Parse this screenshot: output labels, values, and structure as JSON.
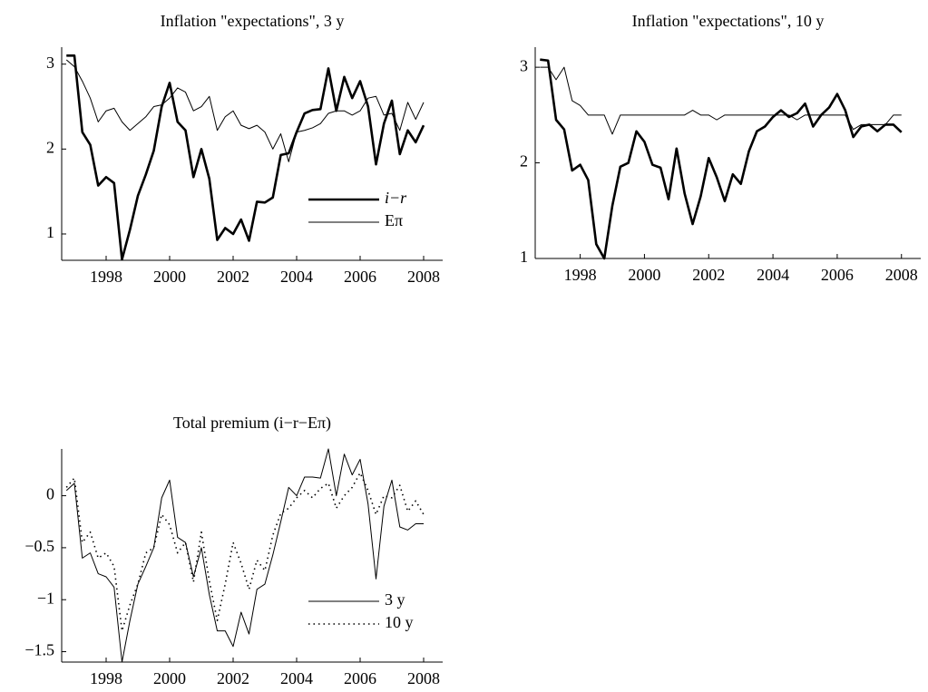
{
  "chart_data": [
    {
      "type": "line",
      "title": "Inflation \"expectations\", 3 y",
      "x": [
        1996.75,
        1997,
        1997.25,
        1997.5,
        1997.75,
        1998,
        1998.25,
        1998.5,
        1998.75,
        1999,
        1999.25,
        1999.5,
        1999.75,
        2000,
        2000.25,
        2000.5,
        2000.75,
        2001,
        2001.25,
        2001.5,
        2001.75,
        2002,
        2002.25,
        2002.5,
        2002.75,
        2003,
        2003.25,
        2003.5,
        2003.75,
        2004,
        2004.25,
        2004.5,
        2004.75,
        2005,
        2005.25,
        2005.5,
        2005.75,
        2006,
        2006.25,
        2006.5,
        2006.75,
        2007,
        2007.25,
        2007.5,
        2007.75,
        2008
      ],
      "series": [
        {
          "name": "i−r",
          "color": "#000000",
          "style": "thick",
          "values": [
            3.1,
            3.1,
            2.2,
            2.05,
            1.57,
            1.67,
            1.6,
            0.7,
            1.05,
            1.45,
            1.7,
            1.98,
            2.5,
            2.78,
            2.32,
            2.22,
            1.67,
            2.0,
            1.65,
            0.93,
            1.07,
            1.0,
            1.17,
            0.92,
            1.38,
            1.37,
            1.43,
            1.93,
            1.95,
            2.2,
            2.42,
            2.46,
            2.47,
            2.95,
            2.45,
            2.85,
            2.6,
            2.8,
            2.5,
            1.82,
            2.3,
            2.57,
            1.94,
            2.22,
            2.08,
            2.28
          ]
        },
        {
          "name": "Eπ",
          "color": "#000000",
          "style": "thin",
          "values": [
            3.05,
            2.97,
            2.8,
            2.6,
            2.32,
            2.45,
            2.48,
            2.32,
            2.22,
            2.3,
            2.38,
            2.5,
            2.52,
            2.6,
            2.72,
            2.67,
            2.45,
            2.5,
            2.62,
            2.22,
            2.38,
            2.45,
            2.28,
            2.24,
            2.28,
            2.2,
            2.0,
            2.18,
            1.85,
            2.2,
            2.22,
            2.25,
            2.3,
            2.42,
            2.45,
            2.45,
            2.4,
            2.45,
            2.6,
            2.62,
            2.4,
            2.42,
            2.22,
            2.55,
            2.35,
            2.55
          ]
        }
      ],
      "xlim": [
        1996.6,
        2008.6
      ],
      "xticks": [
        1998,
        2000,
        2002,
        2004,
        2006,
        2008
      ],
      "ylim": [
        0.69,
        3.2
      ],
      "yticks": [
        1,
        2,
        3
      ],
      "grid": false,
      "legend": "lower right"
    },
    {
      "type": "line",
      "title": "Inflation \"expectations\", 10 y",
      "x": [
        1996.75,
        1997,
        1997.25,
        1997.5,
        1997.75,
        1998,
        1998.25,
        1998.5,
        1998.75,
        1999,
        1999.25,
        1999.5,
        1999.75,
        2000,
        2000.25,
        2000.5,
        2000.75,
        2001,
        2001.25,
        2001.5,
        2001.75,
        2002,
        2002.25,
        2002.5,
        2002.75,
        2003,
        2003.25,
        2003.5,
        2003.75,
        2004,
        2004.25,
        2004.5,
        2004.75,
        2005,
        2005.25,
        2005.5,
        2005.75,
        2006,
        2006.25,
        2006.5,
        2006.75,
        2007,
        2007.25,
        2007.5,
        2007.75,
        2008
      ],
      "series": [
        {
          "color": "#000000",
          "style": "thick",
          "values": [
            3.08,
            3.07,
            2.45,
            2.35,
            1.92,
            1.98,
            1.82,
            1.15,
            1.0,
            1.55,
            1.96,
            2.0,
            2.33,
            2.22,
            1.98,
            1.95,
            1.62,
            2.15,
            1.68,
            1.36,
            1.65,
            2.05,
            1.85,
            1.6,
            1.88,
            1.78,
            2.12,
            2.33,
            2.38,
            2.48,
            2.55,
            2.48,
            2.52,
            2.62,
            2.38,
            2.5,
            2.58,
            2.72,
            2.55,
            2.27,
            2.38,
            2.4,
            2.33,
            2.4,
            2.4,
            2.32
          ]
        },
        {
          "color": "#000000",
          "style": "thin",
          "values": [
            3.0,
            3.0,
            2.87,
            3.0,
            2.65,
            2.6,
            2.5,
            2.5,
            2.5,
            2.3,
            2.5,
            2.5,
            2.5,
            2.5,
            2.5,
            2.5,
            2.5,
            2.5,
            2.5,
            2.55,
            2.5,
            2.5,
            2.45,
            2.5,
            2.5,
            2.5,
            2.5,
            2.5,
            2.5,
            2.5,
            2.5,
            2.5,
            2.45,
            2.5,
            2.5,
            2.5,
            2.5,
            2.5,
            2.5,
            2.35,
            2.4,
            2.4,
            2.4,
            2.4,
            2.5,
            2.5
          ]
        }
      ],
      "xlim": [
        1996.6,
        2008.6
      ],
      "xticks": [
        1998,
        2000,
        2002,
        2004,
        2006,
        2008
      ],
      "ylim": [
        1,
        3.21
      ],
      "yticks": [
        1,
        2,
        3
      ],
      "grid": false
    },
    {
      "type": "line",
      "title": "Total premium (i−r−Eπ)",
      "x": [
        1996.75,
        1997,
        1997.25,
        1997.5,
        1997.75,
        1998,
        1998.25,
        1998.5,
        1998.75,
        1999,
        1999.25,
        1999.5,
        1999.75,
        2000,
        2000.25,
        2000.5,
        2000.75,
        2001,
        2001.25,
        2001.5,
        2001.75,
        2002,
        2002.25,
        2002.5,
        2002.75,
        2003,
        2003.25,
        2003.5,
        2003.75,
        2004,
        2004.25,
        2004.5,
        2004.75,
        2005,
        2005.25,
        2005.5,
        2005.75,
        2006,
        2006.25,
        2006.5,
        2006.75,
        2007,
        2007.25,
        2007.5,
        2007.75,
        2008
      ],
      "series": [
        {
          "name": "3 y",
          "color": "#000000",
          "style": "thin",
          "values": [
            0.05,
            0.12,
            -0.6,
            -0.55,
            -0.75,
            -0.78,
            -0.88,
            -1.6,
            -1.2,
            -0.85,
            -0.68,
            -0.5,
            -0.02,
            0.15,
            -0.4,
            -0.45,
            -0.78,
            -0.5,
            -0.95,
            -1.3,
            -1.3,
            -1.45,
            -1.12,
            -1.33,
            -0.9,
            -0.85,
            -0.57,
            -0.25,
            0.08,
            0.0,
            0.18,
            0.18,
            0.17,
            0.45,
            0.0,
            0.4,
            0.2,
            0.35,
            -0.08,
            -0.8,
            -0.1,
            0.15,
            -0.3,
            -0.33,
            -0.27,
            -0.27
          ]
        },
        {
          "name": "10 y",
          "color": "#000000",
          "style": "dotted",
          "values": [
            0.08,
            0.17,
            -0.45,
            -0.35,
            -0.6,
            -0.55,
            -0.68,
            -1.3,
            -1.05,
            -0.85,
            -0.55,
            -0.5,
            -0.18,
            -0.28,
            -0.55,
            -0.45,
            -0.83,
            -0.35,
            -0.82,
            -1.2,
            -0.85,
            -0.45,
            -0.65,
            -0.9,
            -0.62,
            -0.72,
            -0.38,
            -0.17,
            -0.12,
            -0.02,
            0.05,
            -0.02,
            0.07,
            0.12,
            -0.12,
            0.0,
            0.08,
            0.22,
            0.05,
            -0.18,
            0.0,
            -0.02,
            0.1,
            -0.15,
            -0.05,
            -0.18
          ]
        }
      ],
      "xlim": [
        1996.6,
        2008.6
      ],
      "xticks": [
        1998,
        2000,
        2002,
        2004,
        2006,
        2008
      ],
      "ylim": [
        -1.6,
        0.45
      ],
      "yticks": [
        {
          "value": -1.5,
          "label": "−1.5"
        },
        {
          "value": -1,
          "label": "−1"
        },
        {
          "value": -0.5,
          "label": "−0.5"
        },
        0
      ],
      "grid": false,
      "legend": "lower right"
    }
  ]
}
